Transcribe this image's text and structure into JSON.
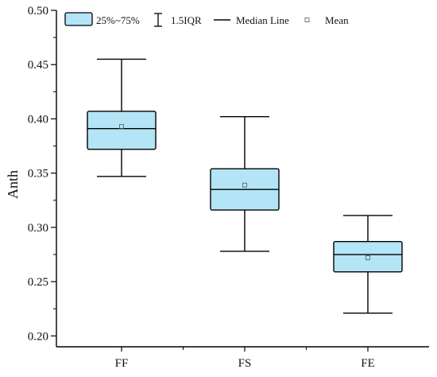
{
  "chart_data": {
    "type": "box",
    "ylabel": "Anth",
    "xlabel": "",
    "ylim": [
      0.19,
      0.5
    ],
    "yticks": [
      "0.20",
      "0.25",
      "0.30",
      "0.35",
      "0.40",
      "0.45",
      "0.50"
    ],
    "categories": [
      "FF",
      "FS",
      "FE"
    ],
    "boxes": [
      {
        "category": "FF",
        "whisker_low": 0.347,
        "q1": 0.372,
        "median": 0.391,
        "q3": 0.407,
        "whisker_high": 0.455,
        "mean": 0.393
      },
      {
        "category": "FS",
        "whisker_low": 0.278,
        "q1": 0.316,
        "median": 0.335,
        "q3": 0.354,
        "whisker_high": 0.402,
        "mean": 0.339
      },
      {
        "category": "FE",
        "whisker_low": 0.221,
        "q1": 0.259,
        "median": 0.275,
        "q3": 0.287,
        "whisker_high": 0.311,
        "mean": 0.272
      }
    ],
    "legend": {
      "placement": "top-left",
      "items": [
        {
          "label": "25%~75%",
          "symbol": "box"
        },
        {
          "label": "1.5IQR",
          "symbol": "whisker"
        },
        {
          "label": "Median Line",
          "symbol": "line"
        },
        {
          "label": "Mean",
          "symbol": "square"
        }
      ]
    },
    "colors": {
      "box_fill": "#b3e5f7",
      "stroke": "#000000"
    },
    "grid": false
  }
}
